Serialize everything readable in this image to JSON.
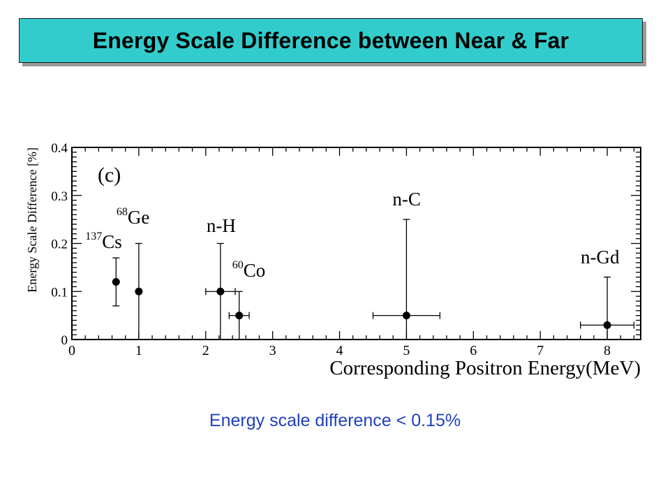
{
  "slide": {
    "title": "Energy Scale Difference between Near & Far",
    "caption": "Energy scale difference < 0.15%",
    "title_bg": "#33cccc",
    "caption_color": "#1f3fbf"
  },
  "chart_data": {
    "type": "scatter",
    "panel_label": "(c)",
    "xlabel": "Corresponding Positron Energy(MeV)",
    "ylabel": "Energy Scale Difference [%]",
    "xlim": [
      0,
      8.5
    ],
    "ylim": [
      0,
      0.4
    ],
    "x_ticks": [
      "0",
      "1",
      "2",
      "3",
      "4",
      "5",
      "6",
      "7",
      "8"
    ],
    "y_ticks": [
      "0",
      "0.1",
      "0.2",
      "0.3",
      "0.4"
    ],
    "grid": false,
    "points": [
      {
        "label_sup": "137",
        "label": "Cs",
        "x": 0.66,
        "y": 0.12,
        "y_low": 0.07,
        "y_high": 0.17,
        "x_err": 0
      },
      {
        "label_sup": "68",
        "label": "Ge",
        "x": 1.0,
        "y": 0.1,
        "y_low": 0.0,
        "y_high": 0.2,
        "x_err": 0
      },
      {
        "label_sup": "",
        "label": "n-H",
        "x": 2.22,
        "y": 0.1,
        "y_low": 0.0,
        "y_high": 0.2,
        "x_err": 0.22
      },
      {
        "label_sup": "60",
        "label": "Co",
        "x": 2.5,
        "y": 0.05,
        "y_low": 0.0,
        "y_high": 0.1,
        "x_err": 0.15
      },
      {
        "label_sup": "",
        "label": "n-C",
        "x": 5.0,
        "y": 0.05,
        "y_low": 0.0,
        "y_high": 0.25,
        "x_err": 0.5
      },
      {
        "label_sup": "",
        "label": "n-Gd",
        "x": 8.0,
        "y": 0.03,
        "y_low": 0.0,
        "y_high": 0.13,
        "x_err": 0.4
      }
    ]
  }
}
